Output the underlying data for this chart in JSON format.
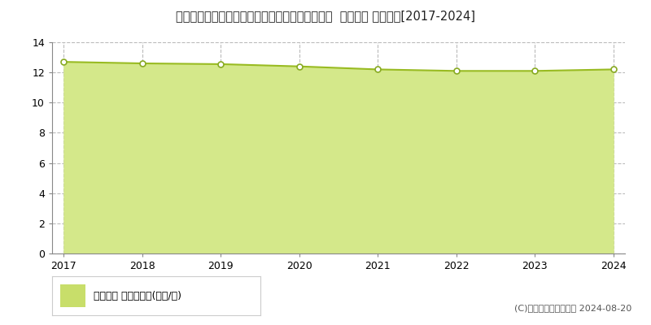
{
  "title": "栃木県栃木市大平町牛久字皀角子戸８０７番４外  地価公示 地価推移[2017-2024]",
  "years": [
    2017,
    2018,
    2019,
    2020,
    2021,
    2022,
    2023,
    2024
  ],
  "values": [
    12.7,
    12.6,
    12.55,
    12.4,
    12.2,
    12.1,
    12.1,
    12.2
  ],
  "ylim": [
    0,
    14
  ],
  "yticks": [
    0,
    2,
    4,
    6,
    8,
    10,
    12,
    14
  ],
  "line_color": "#99bb22",
  "fill_color": "#d4e88a",
  "marker_fill": "#ffffff",
  "marker_edge": "#88aa22",
  "grid_color": "#bbbbbb",
  "bg_color": "#ffffff",
  "legend_label": "地価公示 平均坪単価(万円/坪)",
  "legend_marker_color": "#c8de6a",
  "copyright_text": "(C)土地価格ドットコム 2024-08-20",
  "title_fontsize": 10.5,
  "axis_fontsize": 9,
  "legend_fontsize": 9,
  "copyright_fontsize": 8
}
